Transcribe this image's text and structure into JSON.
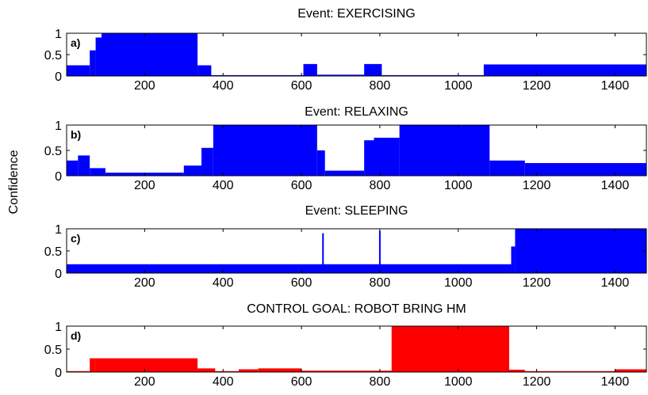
{
  "figure": {
    "ylabel": "Confidence"
  },
  "chart_data": [
    {
      "type": "area",
      "panel_label": "a)",
      "title": "Event: EXERCISING",
      "color": "#0000ff",
      "xlim": [
        1,
        1480
      ],
      "ylim": [
        0,
        1
      ],
      "xticks": [
        200,
        400,
        600,
        800,
        1000,
        1200,
        1400
      ],
      "yticks": [
        0,
        0.5,
        1
      ],
      "ytick_labels": [
        "0",
        "0.5",
        "1"
      ],
      "segments": [
        {
          "x": [
            1,
            60
          ],
          "y": 0.25
        },
        {
          "x": [
            60,
            75
          ],
          "y": 0.6
        },
        {
          "x": [
            75,
            90
          ],
          "y": 0.9
        },
        {
          "x": [
            90,
            335
          ],
          "y": 1.0
        },
        {
          "x": [
            335,
            370
          ],
          "y": 0.25
        },
        {
          "x": [
            370,
            605
          ],
          "y": 0.02
        },
        {
          "x": [
            605,
            640
          ],
          "y": 0.28
        },
        {
          "x": [
            640,
            760
          ],
          "y": 0.03
        },
        {
          "x": [
            760,
            805
          ],
          "y": 0.28
        },
        {
          "x": [
            805,
            1065
          ],
          "y": 0.02
        },
        {
          "x": [
            1065,
            1480
          ],
          "y": 0.27
        }
      ]
    },
    {
      "type": "area",
      "panel_label": "b)",
      "title": "Event: RELAXING",
      "color": "#0000ff",
      "xlim": [
        1,
        1480
      ],
      "ylim": [
        0,
        1
      ],
      "xticks": [
        200,
        400,
        600,
        800,
        1000,
        1200,
        1400
      ],
      "yticks": [
        0,
        0.5,
        1
      ],
      "ytick_labels": [
        "0",
        "0.5",
        "1"
      ],
      "segments": [
        {
          "x": [
            1,
            30
          ],
          "y": 0.3
        },
        {
          "x": [
            30,
            60
          ],
          "y": 0.4
        },
        {
          "x": [
            60,
            100
          ],
          "y": 0.15
        },
        {
          "x": [
            100,
            300
          ],
          "y": 0.06
        },
        {
          "x": [
            300,
            345
          ],
          "y": 0.2
        },
        {
          "x": [
            345,
            375
          ],
          "y": 0.55
        },
        {
          "x": [
            375,
            640
          ],
          "y": 1.0
        },
        {
          "x": [
            640,
            660
          ],
          "y": 0.5
        },
        {
          "x": [
            660,
            760
          ],
          "y": 0.1
        },
        {
          "x": [
            760,
            785
          ],
          "y": 0.7
        },
        {
          "x": [
            785,
            850
          ],
          "y": 0.75
        },
        {
          "x": [
            850,
            1080
          ],
          "y": 1.0
        },
        {
          "x": [
            1080,
            1170
          ],
          "y": 0.3
        },
        {
          "x": [
            1170,
            1480
          ],
          "y": 0.25
        }
      ]
    },
    {
      "type": "area",
      "panel_label": "c)",
      "title": "Event: SLEEPING",
      "color": "#0000ff",
      "xlim": [
        1,
        1480
      ],
      "ylim": [
        0,
        1
      ],
      "xticks": [
        200,
        400,
        600,
        800,
        1000,
        1200,
        1400
      ],
      "yticks": [
        0,
        0.5,
        1
      ],
      "ytick_labels": [
        "0",
        "0.5",
        "1"
      ],
      "segments": [
        {
          "x": [
            1,
            1135
          ],
          "y": 0.2
        },
        {
          "x": [
            1135,
            1145
          ],
          "y": 0.6
        },
        {
          "x": [
            1145,
            1480
          ],
          "y": 1.0
        }
      ],
      "spikes": [
        {
          "x": 655,
          "y": 0.9
        },
        {
          "x": 800,
          "y": 0.95
        }
      ]
    },
    {
      "type": "area",
      "panel_label": "d)",
      "title": "CONTROL GOAL: ROBOT BRING HM",
      "color": "#ff0000",
      "xlim": [
        1,
        1480
      ],
      "ylim": [
        0,
        1
      ],
      "xticks": [
        200,
        400,
        600,
        800,
        1000,
        1200,
        1400
      ],
      "yticks": [
        0,
        0.5,
        1
      ],
      "ytick_labels": [
        "0",
        "0.5",
        "1"
      ],
      "segments": [
        {
          "x": [
            1,
            60
          ],
          "y": 0.02
        },
        {
          "x": [
            60,
            75
          ],
          "y": 0.3
        },
        {
          "x": [
            75,
            335
          ],
          "y": 0.3
        },
        {
          "x": [
            335,
            380
          ],
          "y": 0.08
        },
        {
          "x": [
            380,
            440
          ],
          "y": 0.02
        },
        {
          "x": [
            440,
            490
          ],
          "y": 0.06
        },
        {
          "x": [
            490,
            600
          ],
          "y": 0.08
        },
        {
          "x": [
            600,
            830
          ],
          "y": 0.03
        },
        {
          "x": [
            830,
            1130
          ],
          "y": 1.0
        },
        {
          "x": [
            1130,
            1170
          ],
          "y": 0.05
        },
        {
          "x": [
            1170,
            1400
          ],
          "y": 0.02
        },
        {
          "x": [
            1400,
            1480
          ],
          "y": 0.06
        }
      ]
    }
  ]
}
